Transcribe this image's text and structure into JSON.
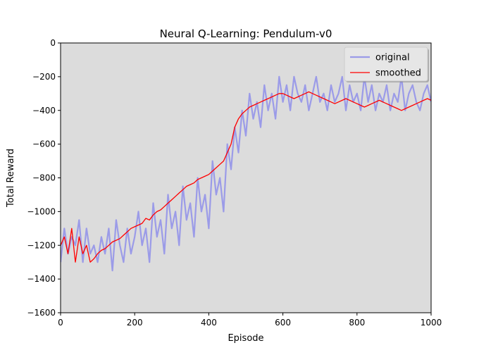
{
  "chart_data": {
    "type": "line",
    "title": "Neural Q-Learning: Pendulum-v0",
    "xlabel": "Episode",
    "ylabel": "Total Reward",
    "xlim": [
      0,
      1000
    ],
    "ylim": [
      -1600,
      0
    ],
    "xticks": [
      0,
      200,
      400,
      600,
      800,
      1000
    ],
    "yticks": [
      0,
      -200,
      -400,
      -600,
      -800,
      -1000,
      -1200,
      -1400,
      -1600
    ],
    "grid": false,
    "legend_position": "top-right",
    "plot_background": "#dcdcdc",
    "series": [
      {
        "name": "original",
        "color": "#9b9be8",
        "x": [
          0,
          10,
          20,
          30,
          40,
          50,
          60,
          70,
          80,
          90,
          100,
          110,
          120,
          130,
          140,
          150,
          160,
          170,
          180,
          190,
          200,
          210,
          220,
          230,
          240,
          250,
          260,
          270,
          280,
          290,
          300,
          310,
          320,
          330,
          340,
          350,
          360,
          370,
          380,
          390,
          400,
          410,
          420,
          430,
          440,
          450,
          460,
          470,
          480,
          490,
          500,
          510,
          520,
          530,
          540,
          550,
          560,
          570,
          580,
          590,
          600,
          610,
          620,
          630,
          640,
          650,
          660,
          670,
          680,
          690,
          700,
          710,
          720,
          730,
          740,
          750,
          760,
          770,
          780,
          790,
          800,
          810,
          820,
          830,
          840,
          850,
          860,
          870,
          880,
          890,
          900,
          910,
          920,
          930,
          940,
          950,
          960,
          970,
          980,
          990,
          1000
        ],
        "y": [
          -1300,
          -1100,
          -1250,
          -1150,
          -1200,
          -1050,
          -1300,
          -1100,
          -1250,
          -1200,
          -1300,
          -1150,
          -1250,
          -1100,
          -1350,
          -1050,
          -1200,
          -1300,
          -1100,
          -1250,
          -1150,
          -1000,
          -1200,
          -1100,
          -1300,
          -950,
          -1150,
          -1050,
          -1250,
          -900,
          -1100,
          -1000,
          -1200,
          -850,
          -1050,
          -950,
          -1150,
          -800,
          -1000,
          -900,
          -1100,
          -700,
          -900,
          -800,
          -1000,
          -600,
          -750,
          -500,
          -650,
          -400,
          -550,
          -300,
          -450,
          -350,
          -500,
          -250,
          -400,
          -300,
          -450,
          -200,
          -350,
          -250,
          -400,
          -200,
          -300,
          -350,
          -250,
          -400,
          -300,
          -200,
          -350,
          -300,
          -400,
          -250,
          -350,
          -300,
          -200,
          -400,
          -250,
          -350,
          -300,
          -400,
          -200,
          -350,
          -250,
          -400,
          -300,
          -350,
          -250,
          -400,
          -300,
          -350,
          -200,
          -400,
          -300,
          -250,
          -350,
          -400,
          -300,
          -250,
          -350
        ]
      },
      {
        "name": "smoothed",
        "color": "#ff0000",
        "x": [
          0,
          10,
          20,
          30,
          40,
          50,
          60,
          70,
          80,
          90,
          100,
          110,
          120,
          130,
          140,
          150,
          160,
          170,
          180,
          190,
          200,
          210,
          220,
          230,
          240,
          250,
          260,
          270,
          280,
          290,
          300,
          310,
          320,
          330,
          340,
          350,
          360,
          370,
          380,
          390,
          400,
          410,
          420,
          430,
          440,
          450,
          460,
          470,
          480,
          490,
          500,
          510,
          520,
          530,
          540,
          550,
          560,
          570,
          580,
          590,
          600,
          610,
          620,
          630,
          640,
          650,
          660,
          670,
          680,
          690,
          700,
          710,
          720,
          730,
          740,
          750,
          760,
          770,
          780,
          790,
          800,
          810,
          820,
          830,
          840,
          850,
          860,
          870,
          880,
          890,
          900,
          910,
          920,
          930,
          940,
          950,
          960,
          970,
          980,
          990,
          1000
        ],
        "y": [
          -1200,
          -1150,
          -1250,
          -1100,
          -1300,
          -1150,
          -1250,
          -1200,
          -1300,
          -1280,
          -1250,
          -1230,
          -1220,
          -1200,
          -1180,
          -1170,
          -1160,
          -1140,
          -1120,
          -1100,
          -1090,
          -1080,
          -1070,
          -1040,
          -1050,
          -1020,
          -1000,
          -990,
          -970,
          -950,
          -930,
          -910,
          -890,
          -870,
          -850,
          -840,
          -830,
          -810,
          -800,
          -790,
          -780,
          -760,
          -740,
          -720,
          -700,
          -650,
          -600,
          -500,
          -450,
          -420,
          -400,
          -380,
          -370,
          -360,
          -350,
          -340,
          -330,
          -320,
          -310,
          -300,
          -300,
          -310,
          -320,
          -330,
          -320,
          -310,
          -300,
          -290,
          -300,
          -310,
          -320,
          -330,
          -340,
          -350,
          -360,
          -350,
          -340,
          -330,
          -340,
          -350,
          -360,
          -370,
          -380,
          -370,
          -360,
          -350,
          -340,
          -350,
          -360,
          -370,
          -380,
          -390,
          -400,
          -390,
          -380,
          -370,
          -360,
          -350,
          -340,
          -330,
          -340
        ]
      }
    ]
  }
}
